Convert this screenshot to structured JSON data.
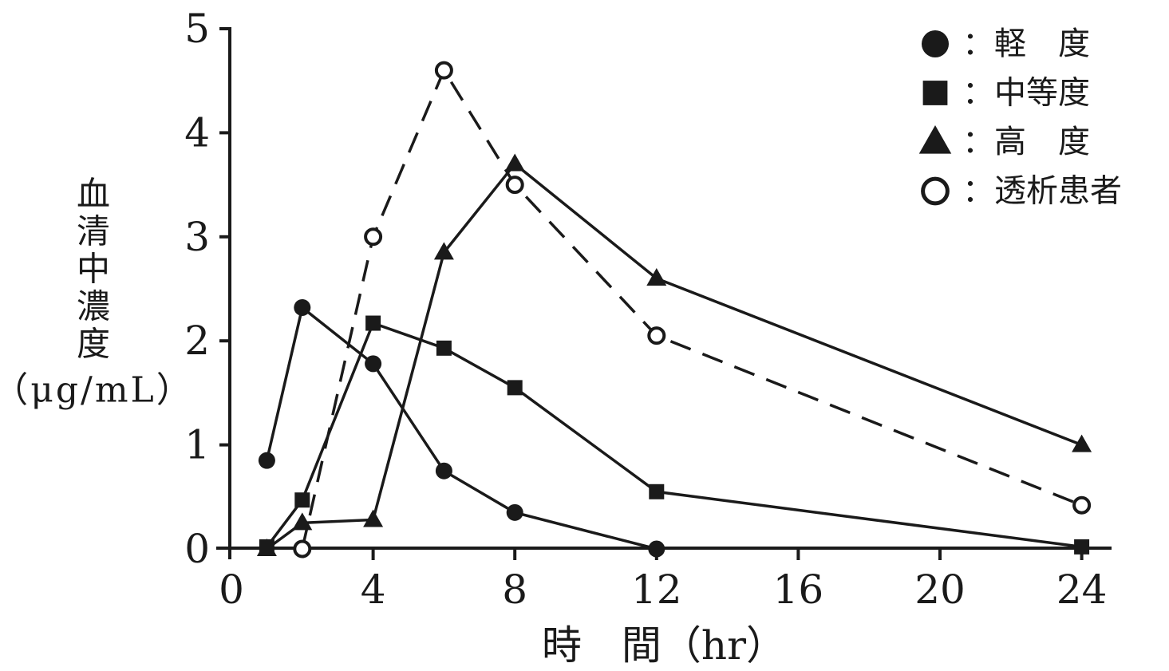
{
  "colors": {
    "ink": "#1a1a1a",
    "background": "#ffffff"
  },
  "chart_data": {
    "type": "line",
    "title": "",
    "xlabel": "時　間（hr）",
    "ylabel_vertical": "血清中濃度",
    "ylabel_unit": "（μg/mL）",
    "xlim": [
      0,
      24
    ],
    "ylim": [
      0,
      5
    ],
    "xticks": [
      0,
      4,
      8,
      12,
      16,
      20,
      24
    ],
    "yticks": [
      0,
      1,
      2,
      3,
      4,
      5
    ],
    "grid": false,
    "legend_position": "top-right",
    "series": [
      {
        "name": "軽度",
        "legend_label": "：軽　度",
        "marker": "filled-circle",
        "line_style": "solid",
        "x": [
          1,
          2,
          4,
          6,
          8,
          12
        ],
        "y": [
          0.85,
          2.32,
          1.78,
          0.75,
          0.35,
          0.0
        ]
      },
      {
        "name": "中等度",
        "legend_label": "：中等度",
        "marker": "filled-square",
        "line_style": "solid",
        "x": [
          1,
          2,
          4,
          6,
          8,
          12,
          24
        ],
        "y": [
          0.02,
          0.47,
          2.17,
          1.93,
          1.55,
          0.55,
          0.02
        ]
      },
      {
        "name": "高度",
        "legend_label": "：高　度",
        "marker": "filled-triangle",
        "line_style": "solid",
        "x": [
          1,
          2,
          4,
          6,
          8,
          12,
          24
        ],
        "y": [
          0.0,
          0.25,
          0.28,
          2.85,
          3.7,
          2.6,
          1.0
        ]
      },
      {
        "name": "透析患者",
        "legend_label": "：透析患者",
        "marker": "open-circle",
        "line_style": "dashed",
        "x": [
          2,
          4,
          6,
          8,
          12,
          24
        ],
        "y": [
          0.0,
          3.0,
          4.6,
          3.5,
          2.05,
          0.42
        ]
      }
    ]
  }
}
